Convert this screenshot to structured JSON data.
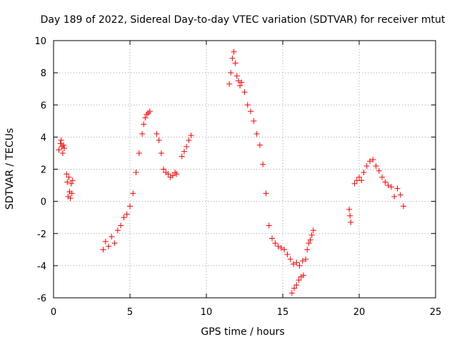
{
  "chart_data": {
    "type": "scatter",
    "title": "Day 189 of 2022, Sidereal Day-to-day VTEC variation (SDTVAR) for receiver mtut",
    "xlabel": "GPS time / hours",
    "ylabel": "SDTVAR / TECUs",
    "xlim": [
      0,
      25
    ],
    "ylim": [
      -6,
      10
    ],
    "xticks": [
      0,
      5,
      10,
      15,
      20,
      25
    ],
    "yticks": [
      -6,
      -4,
      -2,
      0,
      2,
      4,
      6,
      8,
      10
    ],
    "grid": true,
    "marker": "plus",
    "color": "#ff0000",
    "series": [
      {
        "name": "seg1",
        "x": [
          0.35,
          0.45,
          0.5,
          0.55,
          0.6,
          0.65,
          0.7
        ],
        "y": [
          3.2,
          3.6,
          3.8,
          3.4,
          3.0,
          3.5,
          3.3
        ]
      },
      {
        "name": "seg2",
        "x": [
          0.85,
          0.9,
          0.95,
          1.0,
          1.05,
          1.1,
          1.15,
          1.2,
          1.25
        ],
        "y": [
          1.7,
          1.2,
          0.3,
          1.5,
          0.6,
          0.2,
          1.1,
          0.5,
          1.3
        ]
      },
      {
        "name": "seg3",
        "x": [
          3.25,
          3.4,
          3.6,
          3.8,
          4.0,
          4.2,
          4.4,
          4.6,
          4.8,
          5.0,
          5.2,
          5.4,
          5.6,
          5.8,
          5.9,
          6.0,
          6.1,
          6.2,
          6.3
        ],
        "y": [
          -3.0,
          -2.5,
          -2.8,
          -2.2,
          -2.6,
          -1.8,
          -1.5,
          -1.0,
          -0.8,
          -0.3,
          0.5,
          1.8,
          3.0,
          4.2,
          4.8,
          5.2,
          5.4,
          5.5,
          5.6
        ]
      },
      {
        "name": "seg4",
        "x": [
          6.75,
          6.9,
          7.05,
          7.2,
          7.35,
          7.5,
          7.65,
          7.8,
          7.95,
          8.05
        ],
        "y": [
          4.2,
          3.8,
          3.0,
          2.0,
          1.8,
          1.7,
          1.5,
          1.6,
          1.8,
          1.7
        ]
      },
      {
        "name": "seg5",
        "x": [
          8.4,
          8.55,
          8.7,
          8.85,
          9.0
        ],
        "y": [
          2.8,
          3.1,
          3.4,
          3.8,
          4.1
        ]
      },
      {
        "name": "seg6",
        "x": [
          11.5,
          11.6,
          11.7,
          11.8,
          11.9,
          12.0,
          12.1,
          12.2,
          12.3,
          12.5,
          12.7,
          12.9,
          13.1,
          13.3,
          13.5,
          13.7,
          13.9,
          14.1,
          14.3,
          14.5,
          14.7,
          14.9,
          15.1,
          15.3,
          15.5,
          15.7,
          15.9,
          16.1,
          16.3
        ],
        "y": [
          7.3,
          8.0,
          8.9,
          9.3,
          8.6,
          7.8,
          7.5,
          7.2,
          7.4,
          6.8,
          6.0,
          5.6,
          5.0,
          4.2,
          3.5,
          2.3,
          0.5,
          -1.5,
          -2.3,
          -2.6,
          -2.8,
          -2.9,
          -3.0,
          -3.3,
          -3.6,
          -3.9,
          -3.8,
          -4.0,
          -3.7
        ]
      },
      {
        "name": "seg7",
        "x": [
          15.6,
          15.75,
          15.9,
          16.05,
          16.2,
          16.35
        ],
        "y": [
          -5.7,
          -5.4,
          -5.2,
          -4.9,
          -4.7,
          -4.6
        ]
      },
      {
        "name": "seg8",
        "x": [
          16.5,
          16.6,
          16.7,
          16.8,
          16.9,
          17.0
        ],
        "y": [
          -3.6,
          -3.0,
          -2.6,
          -2.4,
          -2.1,
          -1.8
        ]
      },
      {
        "name": "seg9",
        "x": [
          19.35,
          19.4,
          19.45
        ],
        "y": [
          -0.5,
          -0.9,
          -1.3
        ]
      },
      {
        "name": "seg10",
        "x": [
          19.7,
          19.85,
          20.0,
          20.15,
          20.3,
          20.5,
          20.7,
          20.9,
          21.1,
          21.3,
          21.5,
          21.7,
          21.9,
          22.1,
          22.3,
          22.5,
          22.7,
          22.9
        ],
        "y": [
          1.1,
          1.3,
          1.5,
          1.3,
          1.8,
          2.2,
          2.5,
          2.6,
          2.2,
          1.9,
          1.5,
          1.2,
          1.0,
          0.9,
          0.3,
          0.8,
          0.4,
          -0.3
        ]
      }
    ]
  }
}
